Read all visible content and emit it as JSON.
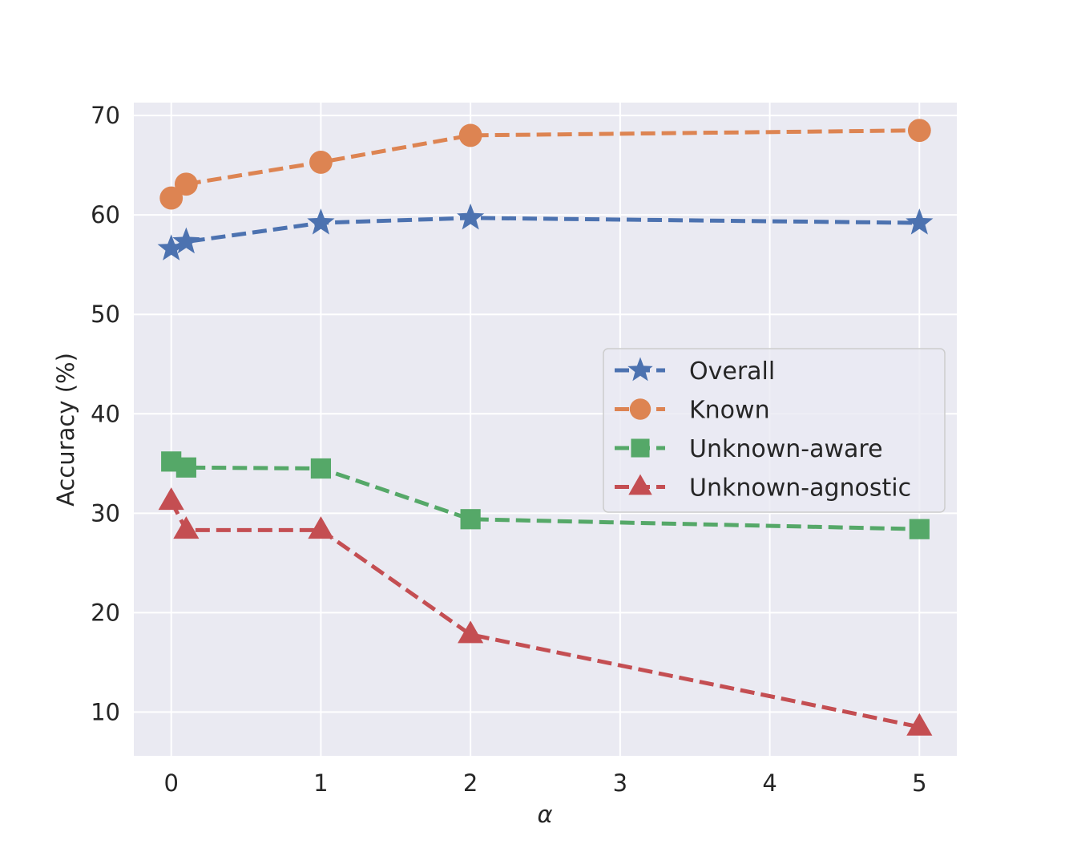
{
  "chart_data": {
    "type": "line",
    "xlabel": "α",
    "ylabel": "Accuracy (%)",
    "xlim": [
      -0.25,
      5.25
    ],
    "ylim": [
      5.6,
      71.3
    ],
    "xticks": [
      0,
      1,
      2,
      3,
      4,
      5
    ],
    "yticks": [
      10,
      20,
      30,
      40,
      50,
      60,
      70
    ],
    "grid": true,
    "legend_position": "center-right",
    "x": [
      0,
      0.1,
      1,
      2,
      5
    ],
    "series": [
      {
        "name": "Overall",
        "values": [
          56.6,
          57.3,
          59.2,
          59.7,
          59.2
        ],
        "color": "#4c72b0",
        "marker": "star",
        "linestyle": "dashed"
      },
      {
        "name": "Known",
        "values": [
          61.7,
          63.1,
          65.3,
          68.0,
          68.5
        ],
        "color": "#dd8452",
        "marker": "circle",
        "linestyle": "dashed"
      },
      {
        "name": "Unknown-aware",
        "values": [
          35.2,
          34.6,
          34.5,
          29.4,
          28.4
        ],
        "color": "#55a868",
        "marker": "square",
        "linestyle": "dashed"
      },
      {
        "name": "Unknown-agnostic",
        "values": [
          31.2,
          28.3,
          28.3,
          17.8,
          8.5
        ],
        "color": "#c44e52",
        "marker": "triangle",
        "linestyle": "dashed"
      }
    ]
  }
}
